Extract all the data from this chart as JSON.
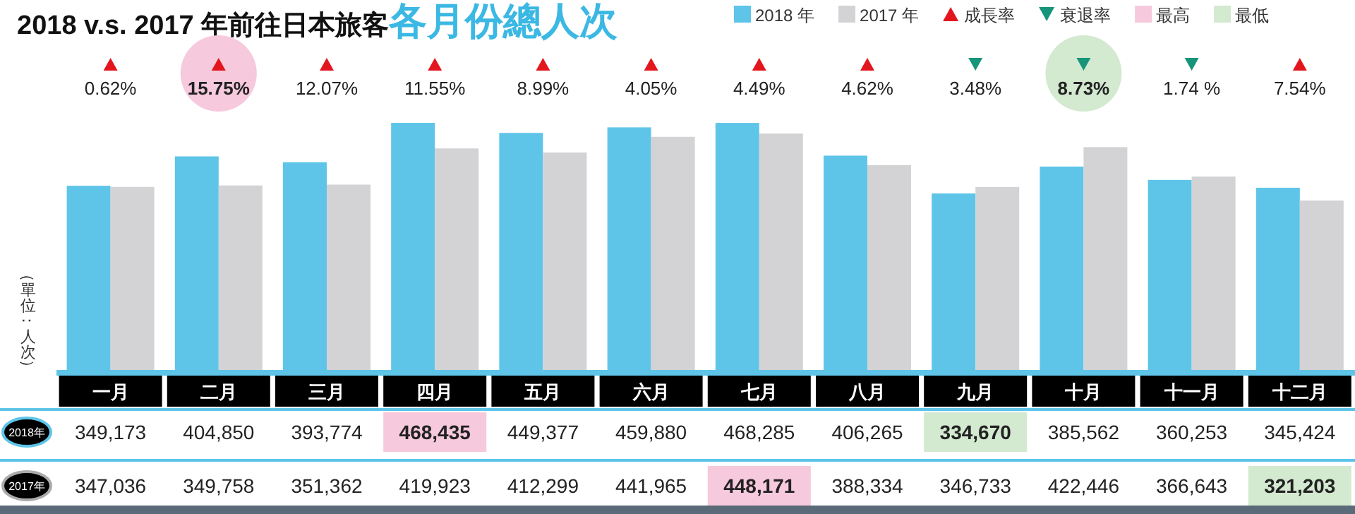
{
  "chart_data": {
    "type": "bar",
    "title": "2018 v.s. 2017 年前往日本旅客**各月份總人次**",
    "ylabel": "（單位：人次）",
    "categories": [
      "一月",
      "二月",
      "三月",
      "四月",
      "五月",
      "六月",
      "七月",
      "八月",
      "九月",
      "十月",
      "十一月",
      "十二月"
    ],
    "series": [
      {
        "name": "2018 年",
        "color": "#5ec5e9",
        "values": [
          349173,
          404850,
          393774,
          468435,
          449377,
          459880,
          468285,
          406265,
          334670,
          385562,
          360253,
          345424
        ],
        "value_labels": [
          "349,173",
          "404,850",
          "393,774",
          "468,435",
          "449,377",
          "459,880",
          "468,285",
          "406,265",
          "334,670",
          "385,562",
          "360,253",
          "345,424"
        ]
      },
      {
        "name": "2017 年",
        "color": "#d3d3d5",
        "values": [
          347036,
          349758,
          351362,
          419923,
          412299,
          441965,
          448171,
          388334,
          346733,
          422446,
          366643,
          321203
        ],
        "value_labels": [
          "347,036",
          "349,758",
          "351,362",
          "419,923",
          "412,299",
          "441,965",
          "448,171",
          "388,334",
          "346,733",
          "422,446",
          "366,643",
          "321,203"
        ]
      }
    ],
    "legend": "top right",
    "annotations": [
      "成長率",
      "衰退率",
      "最高",
      "最低",
      "2018年",
      "2017年",
      "0.62%",
      "15.75%",
      "12.07%",
      "11.55%",
      "8.99%",
      "4.05%",
      "4.49%",
      "4.62%",
      "3.48%",
      "8.73%",
      "1.74 %",
      "7.54%"
    ]
  }
}
